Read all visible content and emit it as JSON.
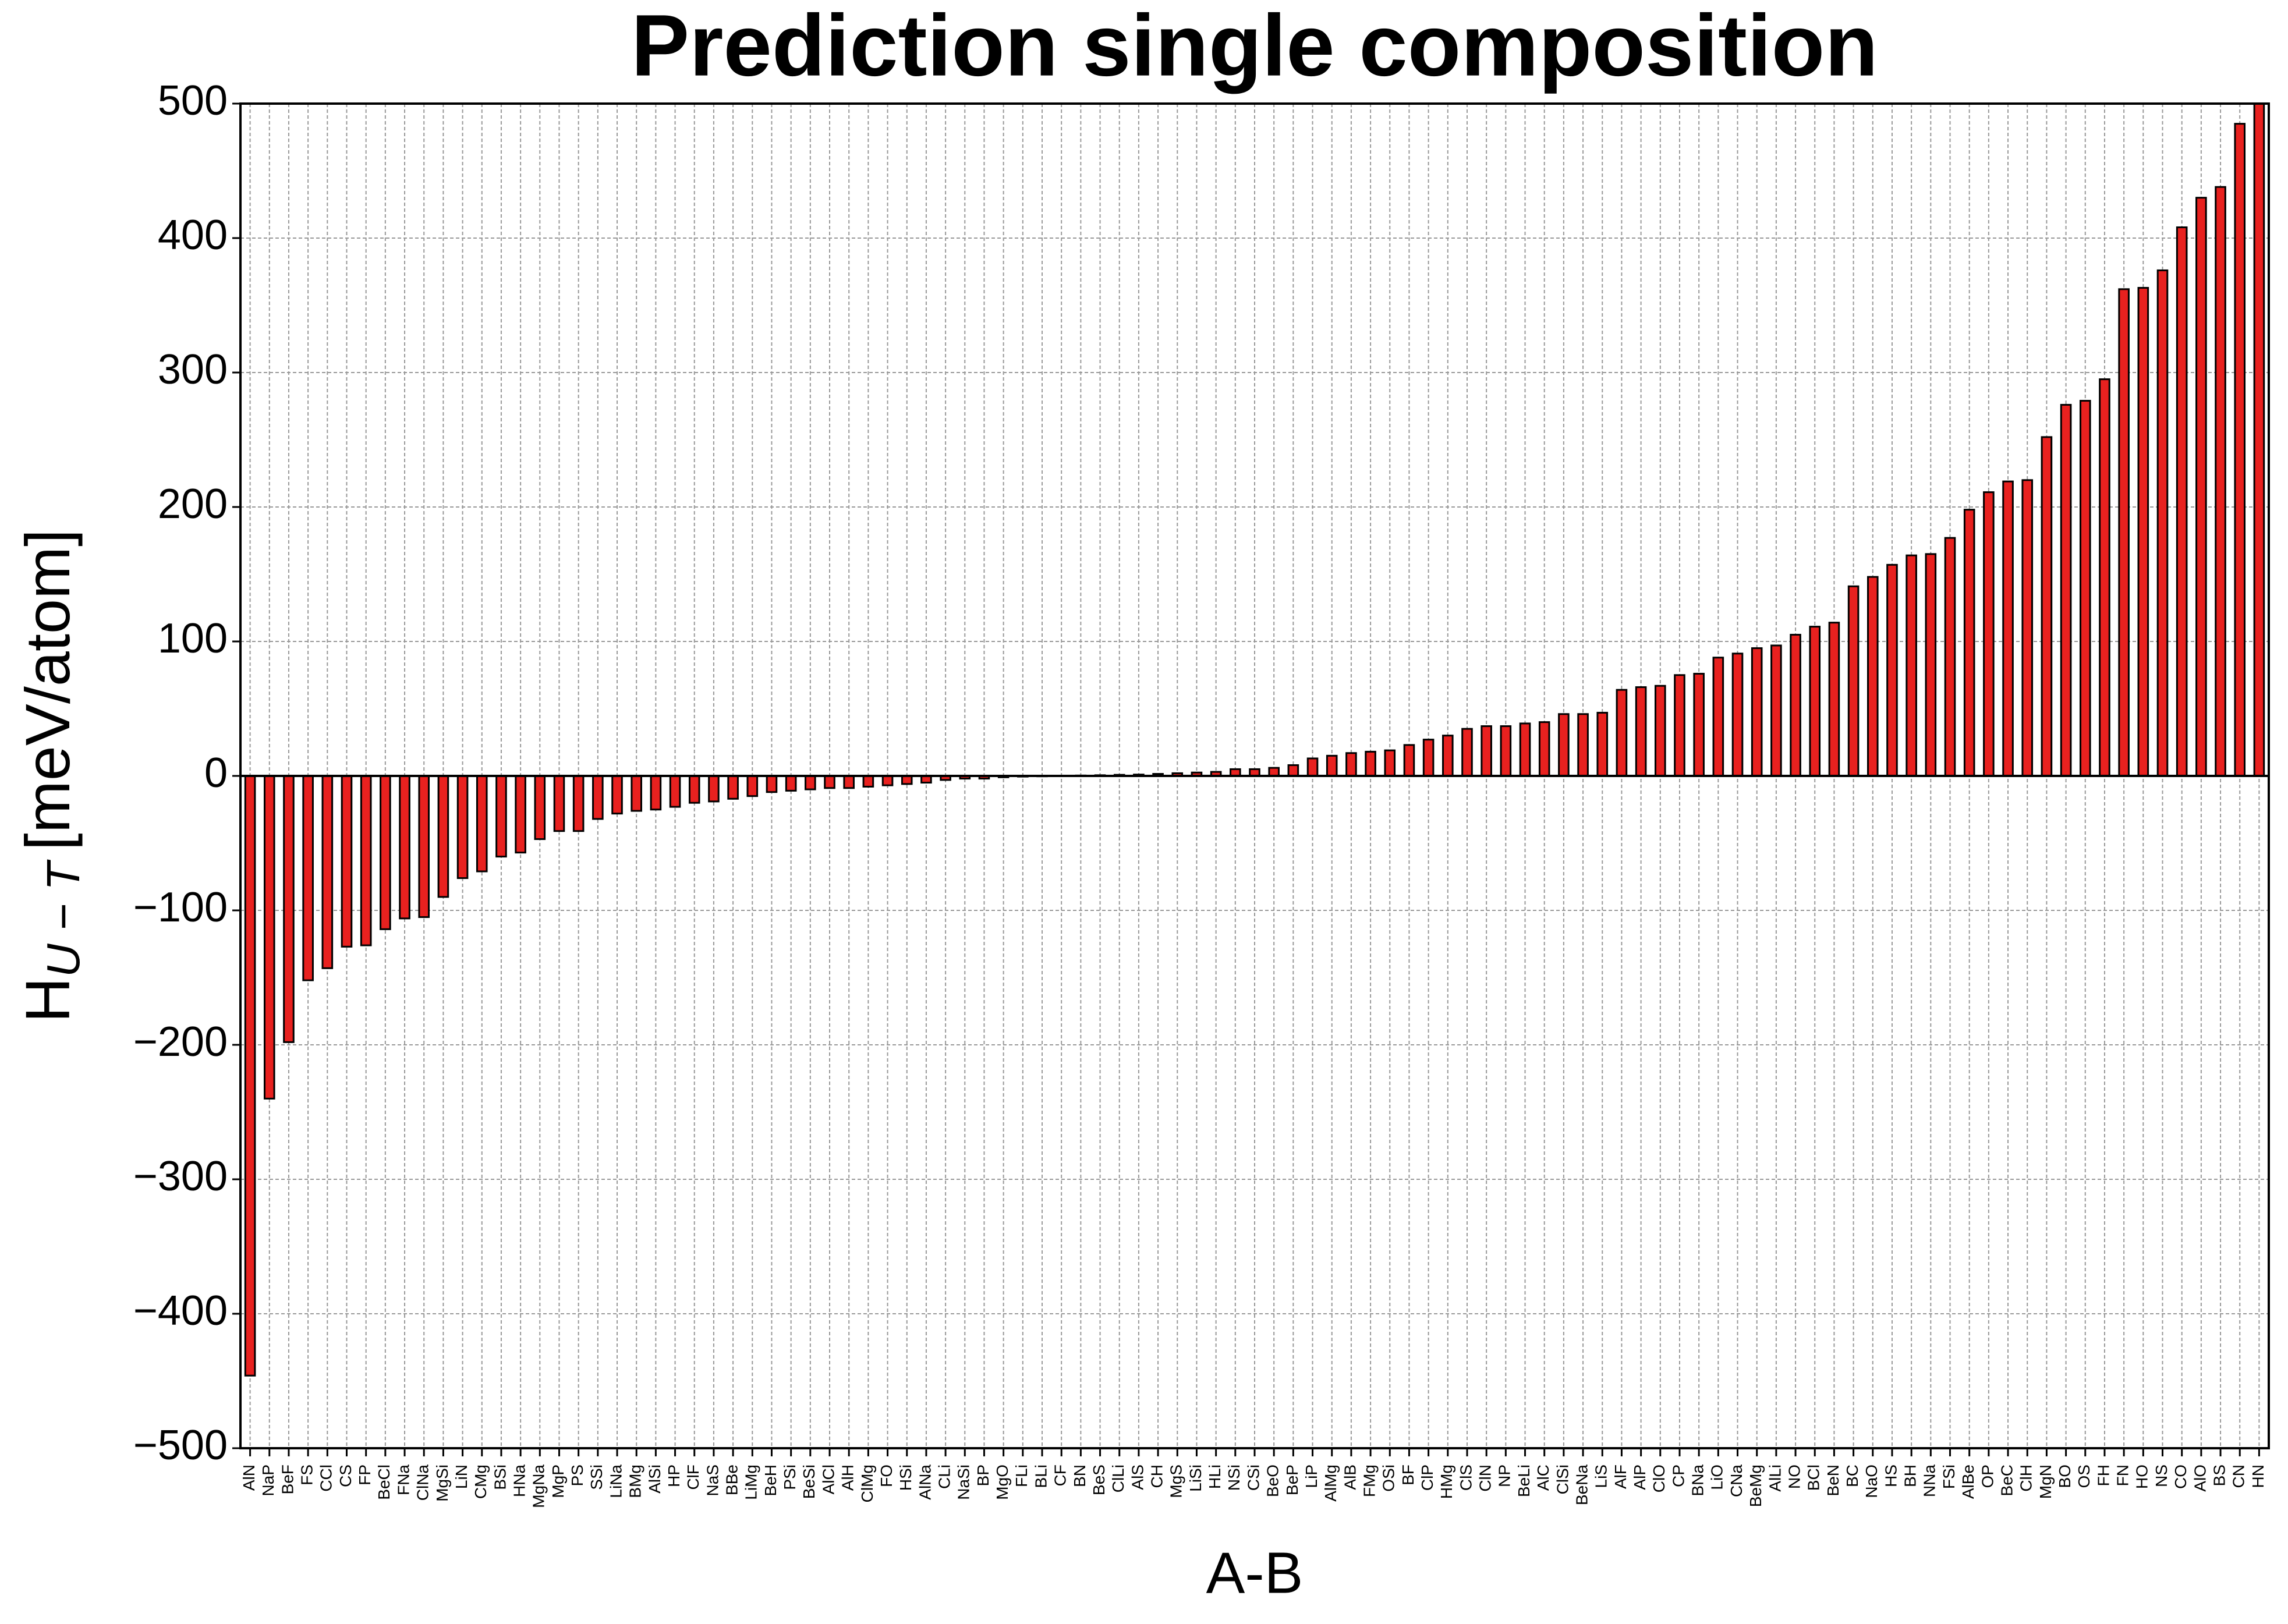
{
  "chart_data": {
    "type": "bar",
    "title": "Prediction single composition",
    "xlabel": "A-B",
    "ylabel": "H",
    "ylabel_sub": "U − T",
    "ylabel_unit": "[meV/atom]",
    "categories": [
      "AlN",
      "NaP",
      "BeF",
      "FS",
      "CCl",
      "CS",
      "FP",
      "BeCl",
      "FNa",
      "ClNa",
      "MgSi",
      "LiN",
      "CMg",
      "BSi",
      "HNa",
      "MgNa",
      "MgP",
      "PS",
      "SSi",
      "LiNa",
      "BMg",
      "AlSi",
      "HP",
      "ClF",
      "NaS",
      "BBe",
      "LiMg",
      "BeH",
      "PSi",
      "BeSi",
      "AlCl",
      "AlH",
      "ClMg",
      "FO",
      "HSi",
      "AlNa",
      "CLi",
      "NaSi",
      "BP",
      "MgO",
      "FLi",
      "BLi",
      "CF",
      "BN",
      "BeS",
      "ClLi",
      "AlS",
      "CH",
      "MgS",
      "LiSi",
      "HLi",
      "NSi",
      "CSi",
      "BeO",
      "BeP",
      "LiP",
      "AlMg",
      "AlB",
      "FMg",
      "OSi",
      "BF",
      "ClP",
      "HMg",
      "ClS",
      "ClN",
      "NP",
      "BeLi",
      "AlC",
      "ClSi",
      "BeNa",
      "LiS",
      "AlF",
      "AlP",
      "ClO",
      "CP",
      "BNa",
      "LiO",
      "CNa",
      "BeMg",
      "AlLi",
      "NO",
      "BCl",
      "BeN",
      "BC",
      "NaO",
      "HS",
      "BH",
      "NNa",
      "FSi",
      "AlBe",
      "OP",
      "BeC",
      "ClH",
      "MgN",
      "BO",
      "OS",
      "FH",
      "FN",
      "HO",
      "NS",
      "CO",
      "AlO",
      "BS",
      "CN",
      "HN"
    ],
    "values": [
      -446,
      -240,
      -198,
      -152,
      -143,
      -127,
      -126,
      -114,
      -106,
      -105,
      -90,
      -76,
      -71,
      -60,
      -57,
      -47,
      -41,
      -41,
      -32,
      -28,
      -26,
      -25,
      -23,
      -20,
      -19,
      -17,
      -15,
      -12,
      -11,
      -10,
      -9,
      -9,
      -8,
      -7,
      -6,
      -5,
      -3,
      -2,
      -2,
      -1,
      -0.5,
      -0.3,
      0,
      0.3,
      0.5,
      0.8,
      1,
      1.5,
      2,
      2.5,
      3,
      5,
      5,
      6,
      8,
      13,
      15,
      17,
      18,
      19,
      23,
      27,
      30,
      35,
      37,
      37,
      39,
      40,
      46,
      46,
      47,
      64,
      66,
      67,
      75,
      76,
      88,
      91,
      95,
      97,
      105,
      111,
      114,
      141,
      148,
      157,
      164,
      165,
      177,
      198,
      211,
      219,
      220,
      252,
      276,
      279,
      295,
      362,
      363,
      376,
      408,
      430,
      438,
      485,
      500
    ],
    "color": "#e8211f",
    "ylim": [
      -500,
      500
    ],
    "yticks": [
      {
        "value": -500,
        "label": "−500"
      },
      {
        "value": -400,
        "label": "−400"
      },
      {
        "value": -300,
        "label": "−300"
      },
      {
        "value": -200,
        "label": "−200"
      },
      {
        "value": -100,
        "label": "−100"
      },
      0,
      100,
      200,
      300,
      400,
      500
    ],
    "grid": true
  }
}
